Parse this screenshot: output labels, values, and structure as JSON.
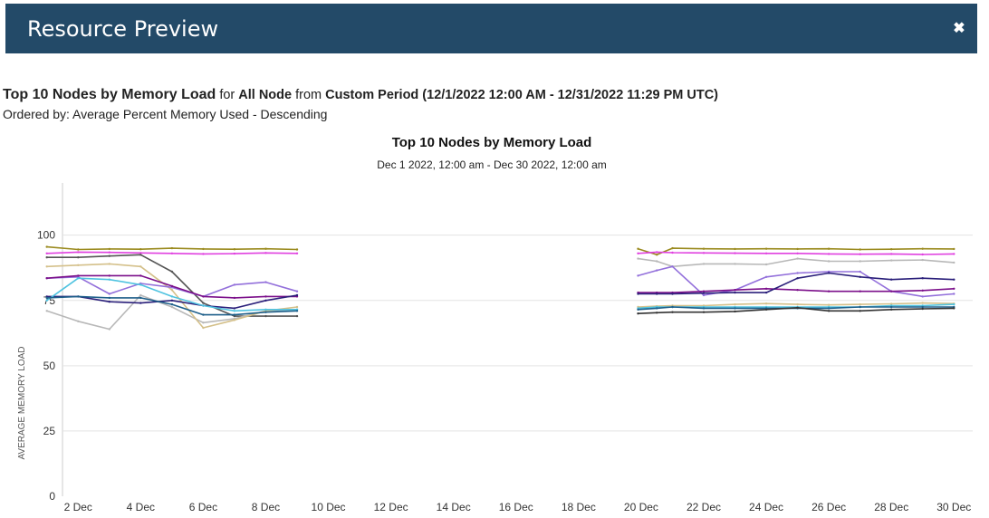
{
  "header": {
    "title": "Resource Preview",
    "close_icon": "close-icon"
  },
  "summary": {
    "report_title": "Top 10 Nodes by Memory Load",
    "for_word": "for",
    "scope": "All Node",
    "from_word": "from",
    "period": "Custom Period (12/1/2022 12:00 AM - 12/31/2022 11:29 PM UTC)",
    "ordered_by": "Ordered by: Average Percent Memory Used - Descending"
  },
  "chart_data": {
    "type": "line",
    "title": "Top 10 Nodes by Memory Load",
    "subtitle": "Dec 1 2022, 12:00 am - Dec 30 2022, 12:00 am",
    "ylabel": "AVERAGE MEMORY LOAD",
    "xlabel": "",
    "x_tick_labels": [
      "2 Dec",
      "4 Dec",
      "6 Dec",
      "8 Dec",
      "10 Dec",
      "12 Dec",
      "14 Dec",
      "16 Dec",
      "18 Dec",
      "20 Dec",
      "22 Dec",
      "24 Dec",
      "26 Dec",
      "28 Dec",
      "30 Dec"
    ],
    "x_tick_days": [
      2,
      4,
      6,
      8,
      10,
      12,
      14,
      16,
      18,
      20,
      22,
      24,
      26,
      28,
      30
    ],
    "xlim": [
      1.5,
      30.6
    ],
    "ylim": [
      0,
      120
    ],
    "y_tick_values": [
      0,
      25,
      50,
      75,
      100
    ],
    "grid": true,
    "legend": "none",
    "series": [
      {
        "color": "#9a8a1e",
        "points": [
          [
            1,
            95.5
          ],
          [
            2,
            94.5
          ],
          [
            3,
            94.7
          ],
          [
            4,
            94.6
          ],
          [
            5,
            95
          ],
          [
            6,
            94.7
          ],
          [
            7,
            94.6
          ],
          [
            8,
            94.8
          ],
          [
            9,
            94.5
          ],
          [
            19.9,
            94.8
          ],
          [
            20.5,
            92.5
          ],
          [
            21,
            95
          ],
          [
            22,
            94.8
          ],
          [
            23,
            94.7
          ],
          [
            24,
            94.8
          ],
          [
            25,
            94.7
          ],
          [
            26,
            94.8
          ],
          [
            27,
            94.5
          ],
          [
            28,
            94.6
          ],
          [
            29,
            94.8
          ],
          [
            30,
            94.7
          ]
        ]
      },
      {
        "color": "#e040e0",
        "points": [
          [
            1,
            93
          ],
          [
            2,
            93.5
          ],
          [
            3,
            93.4
          ],
          [
            4,
            93.2
          ],
          [
            5,
            93
          ],
          [
            6,
            92.8
          ],
          [
            7,
            92.9
          ],
          [
            8,
            93.2
          ],
          [
            9,
            93
          ],
          [
            19.9,
            93
          ],
          [
            20.5,
            93.5
          ],
          [
            21,
            93.3
          ],
          [
            22,
            93.2
          ],
          [
            23,
            93.1
          ],
          [
            24,
            93
          ],
          [
            25,
            93
          ],
          [
            26,
            92.8
          ],
          [
            27,
            92.7
          ],
          [
            28,
            92.8
          ],
          [
            29,
            92.6
          ],
          [
            30,
            92.8
          ]
        ]
      },
      {
        "color": "#555555",
        "points": [
          [
            1,
            91.5
          ],
          [
            2,
            91.5
          ],
          [
            3,
            92
          ],
          [
            4,
            92.5
          ],
          [
            5,
            86
          ],
          [
            6,
            74
          ],
          [
            7,
            69
          ],
          [
            8,
            69
          ],
          [
            9,
            69
          ]
        ]
      },
      {
        "color": "#b8b8b8",
        "points": [
          [
            1,
            71
          ],
          [
            2,
            67
          ],
          [
            3,
            64
          ],
          [
            4,
            77
          ],
          [
            5,
            72.5
          ],
          [
            6,
            66.5
          ],
          [
            7,
            68
          ],
          [
            8,
            71
          ],
          [
            9,
            71.5
          ],
          [
            19.9,
            91
          ],
          [
            20.5,
            90
          ],
          [
            21,
            88
          ],
          [
            22,
            89
          ],
          [
            23,
            89
          ],
          [
            24,
            88.8
          ],
          [
            25,
            91
          ],
          [
            26,
            90
          ],
          [
            27,
            90
          ],
          [
            28,
            90.3
          ],
          [
            29,
            90.5
          ],
          [
            30,
            89.5
          ]
        ]
      },
      {
        "color": "#d4c08a",
        "points": [
          [
            1,
            88
          ],
          [
            2,
            88.5
          ],
          [
            3,
            89
          ],
          [
            4,
            88
          ],
          [
            5,
            79
          ],
          [
            6,
            64.5
          ],
          [
            7,
            67.5
          ],
          [
            8,
            71
          ],
          [
            9,
            72.5
          ],
          [
            19.9,
            72.5
          ],
          [
            20.5,
            72.8
          ],
          [
            21,
            73
          ],
          [
            22,
            73
          ],
          [
            23,
            73.5
          ],
          [
            24,
            73.8
          ],
          [
            25,
            73.5
          ],
          [
            26,
            73.3
          ],
          [
            27,
            73.5
          ],
          [
            28,
            73.7
          ],
          [
            29,
            74
          ],
          [
            30,
            73.8
          ]
        ]
      },
      {
        "color": "#9370db",
        "points": [
          [
            1,
            83.5
          ],
          [
            2,
            84
          ],
          [
            3,
            77.5
          ],
          [
            4,
            81.5
          ],
          [
            5,
            80
          ],
          [
            6,
            76.5
          ],
          [
            7,
            81
          ],
          [
            8,
            82
          ],
          [
            9,
            78.5
          ],
          [
            19.9,
            84.5
          ],
          [
            20.5,
            86.5
          ],
          [
            21,
            88
          ],
          [
            22,
            77
          ],
          [
            23,
            79
          ],
          [
            24,
            84
          ],
          [
            25,
            85.5
          ],
          [
            26,
            86
          ],
          [
            27,
            86
          ],
          [
            28,
            78.5
          ],
          [
            29,
            76.5
          ],
          [
            30,
            77.5
          ]
        ]
      },
      {
        "color": "#7b0f8a",
        "points": [
          [
            1,
            83.5
          ],
          [
            2,
            84.5
          ],
          [
            3,
            84.5
          ],
          [
            4,
            84.5
          ],
          [
            5,
            80.5
          ],
          [
            6,
            76.5
          ],
          [
            7,
            76
          ],
          [
            8,
            76.5
          ],
          [
            9,
            76.5
          ],
          [
            19.9,
            78
          ],
          [
            20.5,
            78
          ],
          [
            21,
            78
          ],
          [
            22,
            78.5
          ],
          [
            23,
            79
          ],
          [
            24,
            79.5
          ],
          [
            25,
            79
          ],
          [
            26,
            78.5
          ],
          [
            27,
            78.5
          ],
          [
            28,
            78.5
          ],
          [
            29,
            78.8
          ],
          [
            30,
            79.5
          ]
        ]
      },
      {
        "color": "#2a1f7a",
        "points": [
          [
            1,
            76.5
          ],
          [
            2,
            76.5
          ],
          [
            3,
            74.5
          ],
          [
            4,
            74
          ],
          [
            5,
            75
          ],
          [
            6,
            73
          ],
          [
            7,
            72
          ],
          [
            8,
            75
          ],
          [
            9,
            77
          ],
          [
            19.9,
            77.5
          ],
          [
            20.5,
            77.5
          ],
          [
            21,
            77.5
          ],
          [
            22,
            77.8
          ],
          [
            23,
            78
          ],
          [
            24,
            78
          ],
          [
            25,
            83.5
          ],
          [
            26,
            85.5
          ],
          [
            27,
            84
          ],
          [
            28,
            83
          ],
          [
            29,
            83.5
          ],
          [
            30,
            83
          ]
        ]
      },
      {
        "color": "#4fc3e0",
        "points": [
          [
            1,
            75
          ],
          [
            2,
            83.5
          ],
          [
            3,
            83
          ],
          [
            4,
            81
          ],
          [
            5,
            76.5
          ],
          [
            6,
            73
          ],
          [
            7,
            71
          ],
          [
            8,
            71.5
          ],
          [
            9,
            71.5
          ],
          [
            19.9,
            72
          ],
          [
            20.5,
            72.5
          ],
          [
            21,
            72.5
          ],
          [
            22,
            72.5
          ],
          [
            23,
            72.5
          ],
          [
            24,
            72.5
          ],
          [
            25,
            72.5
          ],
          [
            26,
            72.5
          ],
          [
            27,
            72.5
          ],
          [
            28,
            73
          ],
          [
            29,
            73
          ],
          [
            30,
            73.5
          ]
        ]
      },
      {
        "color": "#1e5f8a",
        "points": [
          [
            1,
            76
          ],
          [
            2,
            76.5
          ],
          [
            3,
            76
          ],
          [
            4,
            76
          ],
          [
            5,
            73.5
          ],
          [
            6,
            69.5
          ],
          [
            7,
            69.5
          ],
          [
            8,
            70.5
          ],
          [
            9,
            71
          ],
          [
            19.9,
            71.5
          ],
          [
            20.5,
            72
          ],
          [
            21,
            72.5
          ],
          [
            22,
            72
          ],
          [
            23,
            72
          ],
          [
            24,
            72
          ],
          [
            25,
            72
          ],
          [
            26,
            72
          ],
          [
            27,
            72.5
          ],
          [
            28,
            72.5
          ],
          [
            29,
            72.5
          ],
          [
            30,
            72.5
          ]
        ]
      },
      {
        "color": "#333333",
        "points": [
          [
            19.9,
            70
          ],
          [
            20.5,
            70.3
          ],
          [
            21,
            70.5
          ],
          [
            22,
            70.5
          ],
          [
            23,
            70.8
          ],
          [
            24,
            71.5
          ],
          [
            25,
            72.2
          ],
          [
            26,
            71
          ],
          [
            27,
            71
          ],
          [
            28,
            71.5
          ],
          [
            29,
            71.8
          ],
          [
            30,
            72
          ]
        ]
      }
    ]
  }
}
